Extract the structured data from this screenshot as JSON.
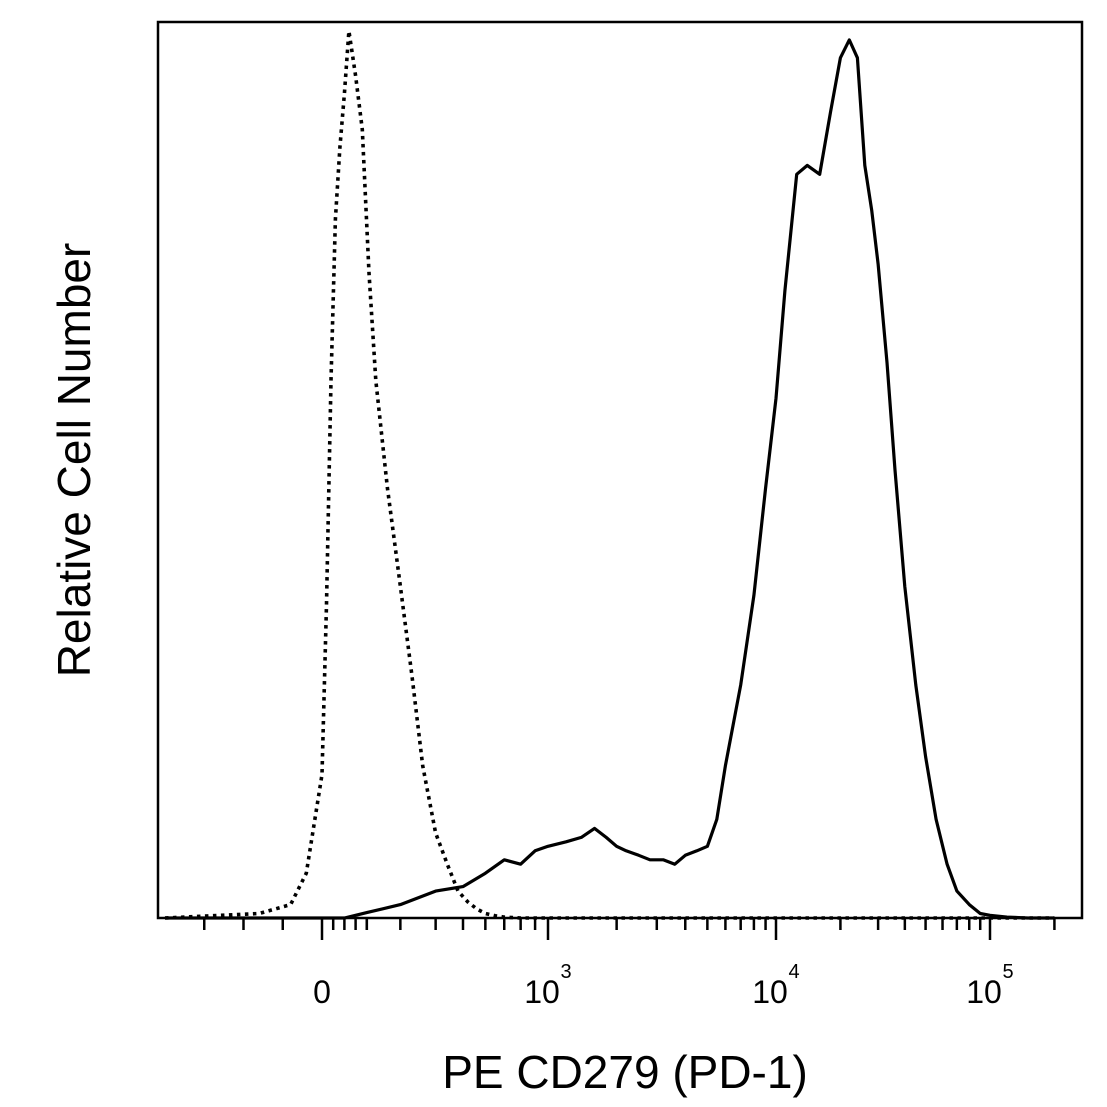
{
  "chart_data": {
    "type": "line",
    "xlabel": "PE  CD279 (PD-1)",
    "ylabel": "Relative Cell Number",
    "x_scale": "logicle",
    "xlim": [
      -200,
      200000
    ],
    "ylim": [
      0,
      100
    ],
    "x_ticks": [
      {
        "value": 0,
        "base": "0",
        "exp": ""
      },
      {
        "value": 1000,
        "base": "10",
        "exp": "3"
      },
      {
        "value": 10000,
        "base": "10",
        "exp": "4"
      },
      {
        "value": 100000,
        "base": "10",
        "exp": "5"
      }
    ],
    "grid": false,
    "series": [
      {
        "style": "dotted",
        "color": "#000000",
        "x": [
          -200,
          -80,
          -40,
          -20,
          0,
          20,
          40,
          60,
          80,
          100,
          120,
          150,
          180,
          210,
          240,
          270,
          300,
          330,
          360,
          400,
          440,
          480,
          520,
          560,
          600,
          650,
          700,
          750,
          800,
          900,
          1000,
          1200,
          200000
        ],
        "y": [
          0,
          0.5,
          1.5,
          5,
          16,
          35,
          60,
          78,
          86,
          92,
          99,
          94,
          88,
          72,
          60,
          48,
          37,
          27,
          17,
          9.5,
          6,
          3,
          1.8,
          1,
          0.5,
          0.25,
          0.1,
          0.05,
          0,
          0,
          0,
          0,
          0
        ]
      },
      {
        "style": "solid",
        "color": "#000000",
        "x": [
          -200,
          100,
          150,
          200,
          300,
          400,
          500,
          600,
          700,
          800,
          900,
          1000,
          1200,
          1400,
          1600,
          1800,
          2000,
          2200,
          2500,
          2800,
          3200,
          3600,
          4000,
          4500,
          5000,
          5500,
          6000,
          7000,
          8000,
          9000,
          10000,
          11000,
          12500,
          14000,
          16000,
          18000,
          20000,
          22000,
          24000,
          26000,
          28000,
          30000,
          33000,
          36000,
          40000,
          45000,
          50000,
          56000,
          63000,
          70000,
          80000,
          90000,
          100000,
          120000,
          150000,
          200000
        ],
        "y": [
          0,
          0,
          0.3,
          0.6,
          1.5,
          3,
          3.5,
          5,
          6.5,
          6,
          7.5,
          8,
          8.5,
          9,
          10,
          9,
          8,
          7.5,
          7,
          6.5,
          6.5,
          6,
          7,
          7.5,
          8,
          11,
          17,
          26,
          36,
          48,
          58,
          70,
          83,
          84,
          83,
          90,
          96,
          98,
          96,
          84,
          79,
          73,
          62,
          50,
          37,
          26,
          18,
          11,
          6,
          3,
          1.5,
          0.5,
          0.3,
          0.1,
          0,
          0
        ]
      }
    ]
  }
}
